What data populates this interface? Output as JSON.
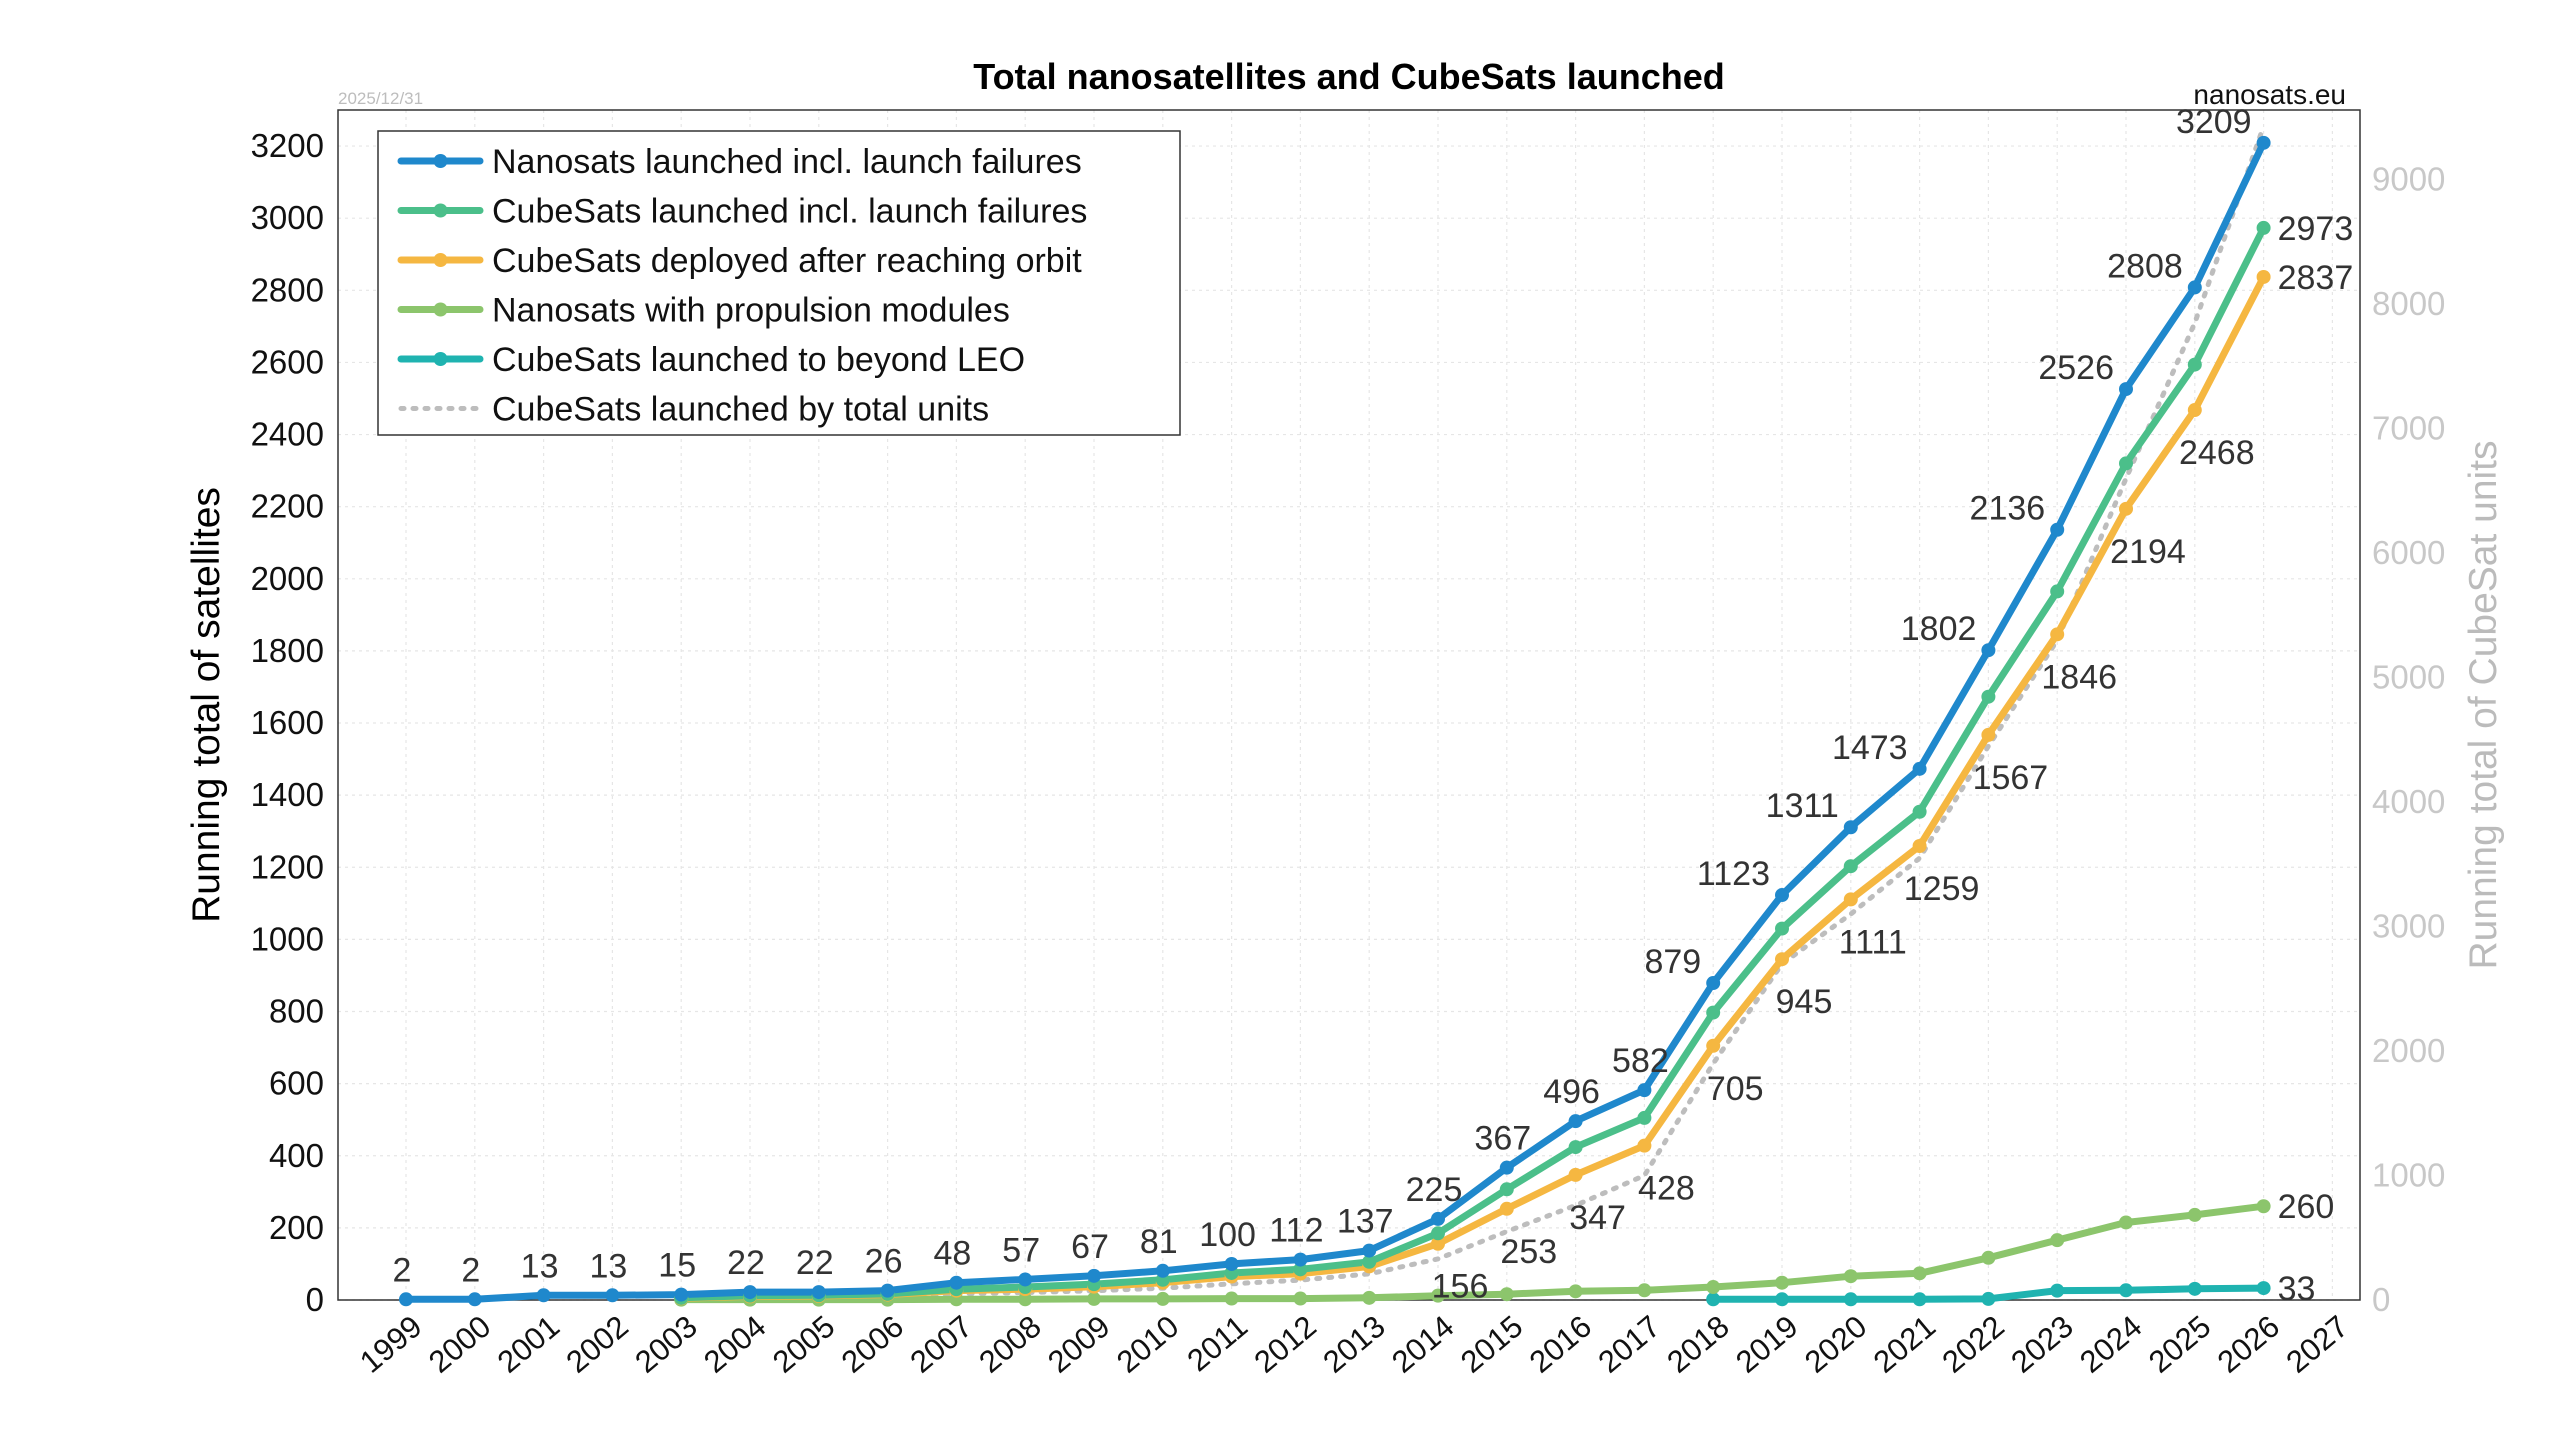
{
  "chart_data": {
    "type": "line",
    "title": "Total nanosatellites and CubeSats launched",
    "date_stamp": "2025/12/31",
    "source": "nanosats.eu",
    "ylabel": "Running total of satellites",
    "ylabel_right": "Running total of CubeSat units",
    "ylim": [
      0,
      3300
    ],
    "ylim_right": [
      0,
      9560
    ],
    "xlim": [
      1999,
      2027
    ],
    "x_ticks": [
      "1999",
      "2000",
      "2001",
      "2002",
      "2003",
      "2004",
      "2005",
      "2006",
      "2007",
      "2008",
      "2009",
      "2010",
      "2011",
      "2012",
      "2013",
      "2014",
      "2015",
      "2016",
      "2017",
      "2018",
      "2019",
      "2020",
      "2021",
      "2022",
      "2023",
      "2024",
      "2025",
      "2026",
      "2027"
    ],
    "y_ticks": [
      "0",
      "200",
      "400",
      "600",
      "800",
      "1000",
      "1200",
      "1400",
      "1600",
      "1800",
      "2000",
      "2200",
      "2400",
      "2600",
      "2800",
      "3000",
      "3200"
    ],
    "y_ticks_right": [
      "0",
      "1000",
      "2000",
      "3000",
      "4000",
      "5000",
      "6000",
      "7000",
      "8000",
      "9000"
    ],
    "grid": true,
    "legend_position": "top-left",
    "series": [
      {
        "name": "Nanosats launched incl. launch failures",
        "color": "#1f88cc",
        "style": "solid",
        "axis": "left",
        "x": [
          1999,
          2000,
          2001,
          2002,
          2003,
          2004,
          2005,
          2006,
          2007,
          2008,
          2009,
          2010,
          2011,
          2012,
          2013,
          2014,
          2015,
          2016,
          2017,
          2018,
          2019,
          2020,
          2021,
          2022,
          2023,
          2024,
          2025,
          2026
        ],
        "values": [
          2,
          2,
          13,
          13,
          15,
          22,
          22,
          26,
          48,
          57,
          67,
          81,
          100,
          112,
          137,
          225,
          367,
          496,
          582,
          879,
          1123,
          1311,
          1473,
          1802,
          2136,
          2526,
          2808,
          3209
        ]
      },
      {
        "name": "CubeSats launched incl. launch failures",
        "color": "#4bbf8a",
        "style": "solid",
        "axis": "left",
        "x": [
          2003,
          2004,
          2005,
          2006,
          2007,
          2008,
          2009,
          2010,
          2011,
          2012,
          2013,
          2014,
          2015,
          2016,
          2017,
          2018,
          2019,
          2020,
          2021,
          2022,
          2023,
          2024,
          2025,
          2026
        ],
        "values": [
          6,
          12,
          13,
          17,
          30,
          36,
          44,
          56,
          75,
          85,
          106,
          185,
          307,
          424,
          505,
          797,
          1030,
          1203,
          1354,
          1673,
          1965,
          2320,
          2594,
          2973
        ]
      },
      {
        "name": "CubeSats deployed after reaching orbit",
        "color": "#f5b741",
        "style": "solid",
        "axis": "left",
        "x": [
          2003,
          2004,
          2005,
          2006,
          2007,
          2008,
          2009,
          2010,
          2011,
          2012,
          2013,
          2014,
          2015,
          2016,
          2017,
          2018,
          2019,
          2020,
          2021,
          2022,
          2023,
          2024,
          2025,
          2026
        ],
        "values": [
          5,
          10,
          11,
          15,
          26,
          30,
          37,
          48,
          65,
          73,
          93,
          156,
          253,
          347,
          428,
          705,
          945,
          1111,
          1259,
          1567,
          1846,
          2194,
          2468,
          2837
        ]
      },
      {
        "name": "Nanosats with propulsion modules",
        "color": "#8cc56c",
        "style": "solid",
        "axis": "left",
        "x": [
          2003,
          2004,
          2005,
          2006,
          2007,
          2008,
          2009,
          2010,
          2011,
          2012,
          2013,
          2014,
          2015,
          2016,
          2017,
          2018,
          2019,
          2020,
          2021,
          2022,
          2023,
          2024,
          2025,
          2026
        ],
        "values": [
          1,
          1,
          1,
          1,
          2,
          2,
          3,
          3,
          4,
          4,
          6,
          12,
          16,
          24,
          27,
          36,
          48,
          66,
          74,
          117,
          166,
          215,
          236,
          260
        ]
      },
      {
        "name": "CubeSats launched to beyond LEO",
        "color": "#1fb3b0",
        "style": "solid",
        "axis": "left",
        "x": [
          2018,
          2019,
          2020,
          2021,
          2022,
          2023,
          2024,
          2025,
          2026
        ],
        "values": [
          2,
          2,
          2,
          2,
          3,
          26,
          27,
          31,
          33
        ]
      },
      {
        "name": "CubeSats launched by total units",
        "color": "#bdbdbd",
        "style": "dotted",
        "axis": "right",
        "x": [
          2003,
          2004,
          2005,
          2006,
          2007,
          2008,
          2009,
          2010,
          2011,
          2012,
          2013,
          2014,
          2015,
          2016,
          2017,
          2018,
          2019,
          2020,
          2021,
          2022,
          2023,
          2024,
          2025,
          2026
        ],
        "values": [
          10,
          20,
          22,
          30,
          50,
          60,
          75,
          95,
          130,
          160,
          210,
          330,
          550,
          760,
          1000,
          1900,
          2700,
          3100,
          3550,
          4450,
          5300,
          6600,
          7850,
          9430
        ]
      }
    ],
    "data_labels": [
      {
        "text": "2",
        "x": 1999,
        "y": 2
      },
      {
        "text": "2",
        "x": 2000,
        "y": 2
      },
      {
        "text": "13",
        "x": 2001,
        "y": 13
      },
      {
        "text": "13",
        "x": 2002,
        "y": 13
      },
      {
        "text": "15",
        "x": 2003,
        "y": 15
      },
      {
        "text": "22",
        "x": 2004,
        "y": 22
      },
      {
        "text": "22",
        "x": 2005,
        "y": 22
      },
      {
        "text": "26",
        "x": 2006,
        "y": 26
      },
      {
        "text": "48",
        "x": 2007,
        "y": 48
      },
      {
        "text": "57",
        "x": 2008,
        "y": 57
      },
      {
        "text": "67",
        "x": 2009,
        "y": 67
      },
      {
        "text": "81",
        "x": 2010,
        "y": 81
      },
      {
        "text": "100",
        "x": 2011,
        "y": 100
      },
      {
        "text": "112",
        "x": 2012,
        "y": 112
      },
      {
        "text": "137",
        "x": 2013,
        "y": 137
      },
      {
        "text": "225",
        "x": 2014,
        "y": 225
      },
      {
        "text": "367",
        "x": 2015,
        "y": 367
      },
      {
        "text": "496",
        "x": 2016,
        "y": 496
      },
      {
        "text": "582",
        "x": 2017,
        "y": 582
      },
      {
        "text": "879",
        "x": 2018,
        "y": 879
      },
      {
        "text": "1123",
        "x": 2019,
        "y": 1123
      },
      {
        "text": "1311",
        "x": 2020,
        "y": 1311
      },
      {
        "text": "1473",
        "x": 2021,
        "y": 1473
      },
      {
        "text": "1802",
        "x": 2022,
        "y": 1802
      },
      {
        "text": "2136",
        "x": 2023,
        "y": 2136
      },
      {
        "text": "2526",
        "x": 2024,
        "y": 2526
      },
      {
        "text": "2808",
        "x": 2025,
        "y": 2808
      },
      {
        "text": "3209",
        "x": 2026,
        "y": 3209
      },
      {
        "text": "2973",
        "x": 2026,
        "y": 2973
      },
      {
        "text": "2837",
        "x": 2026,
        "y": 2837
      },
      {
        "text": "2468",
        "x": 2025,
        "y": 2468
      },
      {
        "text": "2194",
        "x": 2024,
        "y": 2194
      },
      {
        "text": "1846",
        "x": 2023,
        "y": 1846
      },
      {
        "text": "1567",
        "x": 2022,
        "y": 1567
      },
      {
        "text": "1259",
        "x": 2021,
        "y": 1259
      },
      {
        "text": "1111",
        "x": 2020,
        "y": 1111
      },
      {
        "text": "945",
        "x": 2019,
        "y": 945
      },
      {
        "text": "705",
        "x": 2018,
        "y": 705
      },
      {
        "text": "428",
        "x": 2017,
        "y": 428
      },
      {
        "text": "347",
        "x": 2016,
        "y": 347
      },
      {
        "text": "253",
        "x": 2015,
        "y": 253
      },
      {
        "text": "156",
        "x": 2014,
        "y": 156
      },
      {
        "text": "260",
        "x": 2026,
        "y": 260
      },
      {
        "text": "33",
        "x": 2026,
        "y": 33
      }
    ]
  }
}
